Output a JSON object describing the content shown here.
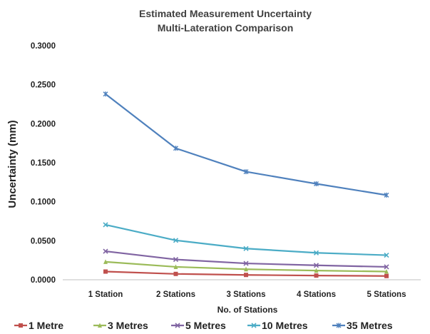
{
  "chart_data": {
    "type": "line",
    "title": "Estimated Measurement Uncertainty",
    "subtitle": "Multi-Lateration Comparison",
    "xlabel": "No. of Stations",
    "ylabel": "Uncertainty (mm)",
    "categories": [
      "1 Station",
      "2 Stations",
      "3 Stations",
      "4 Stations",
      "5 Stations"
    ],
    "ylim": [
      0,
      0.3
    ],
    "yticks": [
      "0.0000",
      "0.0500",
      "0.1000",
      "0.1500",
      "0.2000",
      "0.2500",
      "0.3000"
    ],
    "grid": false,
    "legend_position": "bottom",
    "series": [
      {
        "name": "1 Metre",
        "color": "#c0504d",
        "marker": "square",
        "values": [
          0.0105,
          0.0075,
          0.0062,
          0.0054,
          0.0048
        ]
      },
      {
        "name": "3 Metres",
        "color": "#9bbb59",
        "marker": "triangle",
        "values": [
          0.023,
          0.0165,
          0.0135,
          0.0118,
          0.0105
        ]
      },
      {
        "name": "5 Metres",
        "color": "#8064a2",
        "marker": "x",
        "values": [
          0.0365,
          0.026,
          0.021,
          0.0185,
          0.0165
        ]
      },
      {
        "name": "10 Metres",
        "color": "#4bacc6",
        "marker": "x",
        "values": [
          0.0705,
          0.0505,
          0.04,
          0.0345,
          0.0315
        ]
      },
      {
        "name": "35 Metres",
        "color": "#4f81bd",
        "marker": "star",
        "values": [
          0.238,
          0.1685,
          0.1385,
          0.123,
          0.1085
        ]
      }
    ]
  }
}
